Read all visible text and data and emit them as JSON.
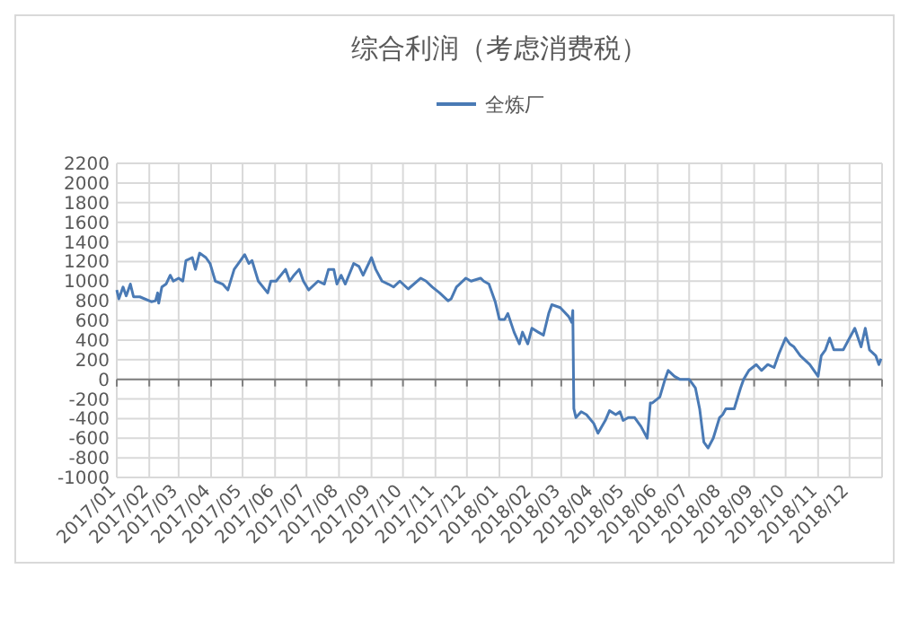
{
  "chart_data": {
    "type": "line",
    "title": "综合利润（考虑消费税）",
    "legend": "top",
    "grid": true,
    "line_style": "solid",
    "marker": "none",
    "xlim": [
      "2017-01-01",
      "2019-01-01"
    ],
    "xticks": [
      {
        "value": "2017-01-01",
        "label": "2017/01"
      },
      {
        "value": "2017-02-01",
        "label": "2017/02"
      },
      {
        "value": "2017-03-01",
        "label": "2017/03"
      },
      {
        "value": "2017-04-01",
        "label": "2017/04"
      },
      {
        "value": "2017-05-01",
        "label": "2017/05"
      },
      {
        "value": "2017-06-01",
        "label": "2017/06"
      },
      {
        "value": "2017-07-01",
        "label": "2017/07"
      },
      {
        "value": "2017-08-01",
        "label": "2017/08"
      },
      {
        "value": "2017-09-01",
        "label": "2017/09"
      },
      {
        "value": "2017-10-01",
        "label": "2017/10"
      },
      {
        "value": "2017-11-01",
        "label": "2017/11"
      },
      {
        "value": "2017-12-01",
        "label": "2017/12"
      },
      {
        "value": "2018-01-01",
        "label": "2018/01"
      },
      {
        "value": "2018-02-01",
        "label": "2018/02"
      },
      {
        "value": "2018-03-01",
        "label": "2018/03"
      },
      {
        "value": "2018-04-01",
        "label": "2018/04"
      },
      {
        "value": "2018-05-01",
        "label": "2018/05"
      },
      {
        "value": "2018-06-01",
        "label": "2018/06"
      },
      {
        "value": "2018-07-01",
        "label": "2018/07"
      },
      {
        "value": "2018-08-01",
        "label": "2018/08"
      },
      {
        "value": "2018-09-01",
        "label": "2018/09"
      },
      {
        "value": "2018-10-01",
        "label": "2018/10"
      },
      {
        "value": "2018-11-01",
        "label": "2018/11"
      },
      {
        "value": "2018-12-01",
        "label": "2018/12"
      },
      {
        "value": "2019-01-01",
        "label": null
      }
    ],
    "ylim": [
      -1000,
      2200
    ],
    "yticks": [
      -1000,
      -800,
      -600,
      -400,
      -200,
      0,
      200,
      400,
      600,
      800,
      1000,
      1200,
      1400,
      1600,
      1800,
      2000,
      2200
    ],
    "x": [
      "2017-01-01",
      "2017-01-03",
      "2017-01-07",
      "2017-01-10",
      "2017-01-14",
      "2017-01-17",
      "2017-01-23",
      "2017-02-03",
      "2017-02-07",
      "2017-02-09",
      "2017-02-10",
      "2017-02-13",
      "2017-02-17",
      "2017-02-21",
      "2017-02-24",
      "2017-03-01",
      "2017-03-05",
      "2017-03-08",
      "2017-03-14",
      "2017-03-17",
      "2017-03-21",
      "2017-03-27",
      "2017-03-31",
      "2017-04-05",
      "2017-04-12",
      "2017-04-17",
      "2017-04-23",
      "2017-04-29",
      "2017-05-03",
      "2017-05-07",
      "2017-05-10",
      "2017-05-16",
      "2017-05-25",
      "2017-05-28",
      "2017-06-02",
      "2017-06-11",
      "2017-06-15",
      "2017-06-19",
      "2017-06-24",
      "2017-06-28",
      "2017-07-03",
      "2017-07-12",
      "2017-07-18",
      "2017-07-22",
      "2017-07-27",
      "2017-07-30",
      "2017-08-03",
      "2017-08-07",
      "2017-08-15",
      "2017-08-20",
      "2017-08-24",
      "2017-09-01",
      "2017-09-05",
      "2017-09-11",
      "2017-09-17",
      "2017-09-22",
      "2017-09-28",
      "2017-10-06",
      "2017-10-18",
      "2017-10-23",
      "2017-10-29",
      "2017-11-05",
      "2017-11-13",
      "2017-11-16",
      "2017-11-21",
      "2017-11-30",
      "2017-12-05",
      "2017-12-14",
      "2017-12-17",
      "2017-12-22",
      "2017-12-28",
      "2018-01-01",
      "2018-01-06",
      "2018-01-09",
      "2018-01-15",
      "2018-01-20",
      "2018-01-23",
      "2018-01-28",
      "2018-02-01",
      "2018-02-07",
      "2018-02-12",
      "2018-02-17",
      "2018-02-20",
      "2018-02-28",
      "2018-03-08",
      "2018-03-11",
      "2018-03-12",
      "2018-03-13",
      "2018-03-15",
      "2018-03-20",
      "2018-03-25",
      "2018-04-01",
      "2018-04-05",
      "2018-04-12",
      "2018-04-16",
      "2018-04-22",
      "2018-04-26",
      "2018-04-29",
      "2018-05-04",
      "2018-05-10",
      "2018-05-16",
      "2018-05-22",
      "2018-05-25",
      "2018-05-27",
      "2018-06-03",
      "2018-06-08",
      "2018-06-11",
      "2018-06-17",
      "2018-06-22",
      "2018-07-01",
      "2018-07-07",
      "2018-07-11",
      "2018-07-15",
      "2018-07-19",
      "2018-07-24",
      "2018-07-30",
      "2018-08-02",
      "2018-08-05",
      "2018-08-13",
      "2018-08-19",
      "2018-08-22",
      "2018-08-27",
      "2018-09-03",
      "2018-09-08",
      "2018-09-14",
      "2018-09-20",
      "2018-09-25",
      "2018-10-01",
      "2018-10-05",
      "2018-10-09",
      "2018-10-15",
      "2018-10-24",
      "2018-11-01",
      "2018-11-04",
      "2018-11-08",
      "2018-11-12",
      "2018-11-16",
      "2018-11-25",
      "2018-12-06",
      "2018-12-12",
      "2018-12-16",
      "2018-12-20",
      "2018-12-26",
      "2018-12-29",
      "2018-12-31"
    ],
    "series": [
      {
        "name": "全炼厂",
        "color": "#4a7ab5",
        "values": [
          910,
          820,
          940,
          850,
          970,
          840,
          840,
          790,
          800,
          880,
          775,
          940,
          970,
          1060,
          1000,
          1030,
          1000,
          1210,
          1240,
          1120,
          1285,
          1240,
          1180,
          1000,
          970,
          910,
          1120,
          1210,
          1270,
          1180,
          1210,
          1000,
          880,
          1000,
          1000,
          1120,
          1000,
          1060,
          1120,
          1000,
          910,
          1000,
          970,
          1120,
          1120,
          970,
          1060,
          970,
          1180,
          1150,
          1060,
          1240,
          1120,
          1000,
          970,
          940,
          1000,
          920,
          1030,
          1000,
          940,
          880,
          800,
          820,
          940,
          1030,
          1000,
          1030,
          1000,
          970,
          790,
          610,
          610,
          670,
          480,
          360,
          480,
          360,
          520,
          480,
          450,
          670,
          760,
          730,
          640,
          580,
          700,
          -300,
          -390,
          -330,
          -360,
          -450,
          -550,
          -420,
          -320,
          -360,
          -330,
          -420,
          -390,
          -390,
          -480,
          -600,
          -240,
          -240,
          -180,
          0,
          90,
          30,
          0,
          0,
          -90,
          -300,
          -640,
          -700,
          -600,
          -390,
          -360,
          -300,
          -300,
          -90,
          0,
          90,
          150,
          90,
          150,
          120,
          270,
          420,
          360,
          330,
          240,
          150,
          30,
          240,
          300,
          420,
          300,
          300,
          520,
          330,
          520,
          300,
          240,
          150,
          210
        ]
      }
    ]
  }
}
